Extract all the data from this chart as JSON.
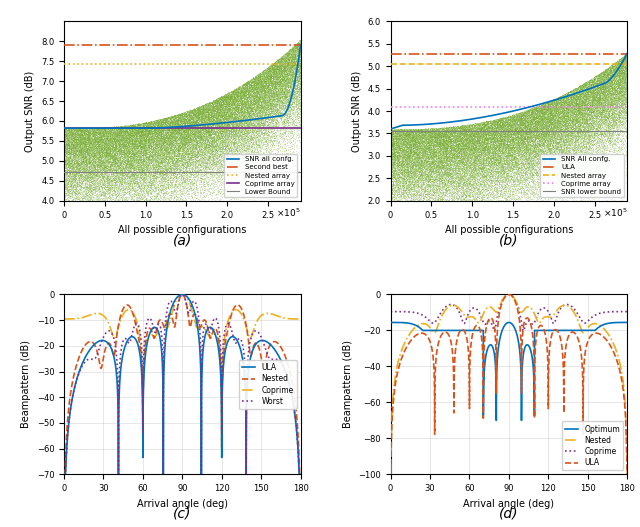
{
  "subplot_a": {
    "title": "(a)",
    "xlabel": "All possible configurations",
    "ylabel": "Output SNR (dB)",
    "xmax": 290000,
    "ylim": [
      4,
      8.5
    ],
    "yticks": [
      4,
      4.5,
      5,
      5.5,
      6,
      6.5,
      7,
      7.5,
      8
    ],
    "curve_color": "#0072BD",
    "dot_color": "#77AC30",
    "second_best_val": 7.9,
    "second_best_color": "#D95319",
    "second_best_style": "-.",
    "nested_val": 7.42,
    "nested_color": "#EDB120",
    "nested_style": ":",
    "coprime_val": 5.82,
    "coprime_color": "#7E2F8E",
    "coprime_style": "-",
    "lower_bound_val": 4.72,
    "lower_bound_color": "#808080",
    "lower_bound_style": "-",
    "legend_labels": [
      "SNR all confg.",
      "Second best",
      "Nested array",
      "Coprime array",
      "Lower Bound"
    ]
  },
  "subplot_b": {
    "title": "(b)",
    "xlabel": "All possible configurations",
    "ylabel": "Output SNR (dB)",
    "xmax": 290000,
    "ylim": [
      2,
      6
    ],
    "yticks": [
      2,
      2.5,
      3,
      3.5,
      4,
      4.5,
      5,
      5.5,
      6
    ],
    "curve_color": "#0072BD",
    "dot_color": "#77AC30",
    "ula_val": 5.27,
    "ula_color": "#D95319",
    "ula_style": "-.",
    "nested_val": 5.05,
    "nested_color": "#EDB120",
    "nested_style": "--",
    "coprime_val": 4.08,
    "coprime_color": "#EE82EE",
    "coprime_style": ":",
    "lower_bound_val": 3.55,
    "lower_bound_color": "#808080",
    "lower_bound_style": "-",
    "legend_labels": [
      "SNR All confg.",
      "ULA",
      "Nested array",
      "Coprime array",
      "SNR lower bound"
    ]
  },
  "subplot_c": {
    "title": "(c)",
    "xlabel": "Arrival angle (deg)",
    "ylabel": "Beampattern (dB)",
    "xlim": [
      0,
      180
    ],
    "ylim": [
      -70,
      0
    ],
    "xticks": [
      0,
      30,
      60,
      90,
      120,
      150,
      180
    ],
    "yticks": [
      0,
      -10,
      -20,
      -30,
      -40,
      -50,
      -60,
      -70
    ],
    "ula_color": "#0072BD",
    "nested_color": "#D95319",
    "coprime_color": "#EDB120",
    "worst_color": "#7E2F8E",
    "legend_labels": [
      "ULA",
      "Nested",
      "Coprime",
      "Worst"
    ]
  },
  "subplot_d": {
    "title": "(d)",
    "xlabel": "Arrival angle (deg)",
    "ylabel": "Beampattern (dB)",
    "xlim": [
      0,
      180
    ],
    "ylim": [
      -100,
      0
    ],
    "xticks": [
      0,
      30,
      60,
      90,
      120,
      150,
      180
    ],
    "yticks": [
      0,
      -20,
      -40,
      -60,
      -80,
      -100
    ],
    "optimum_color": "#0072BD",
    "nested_color": "#EDB120",
    "coprime_color": "#7E2F8E",
    "ula_color": "#D95319",
    "legend_labels": [
      "Optimum",
      "Nested",
      "Coprime",
      "ULA"
    ]
  },
  "bg_color": "#FFFFFF",
  "figure_label_fontsize": 10
}
